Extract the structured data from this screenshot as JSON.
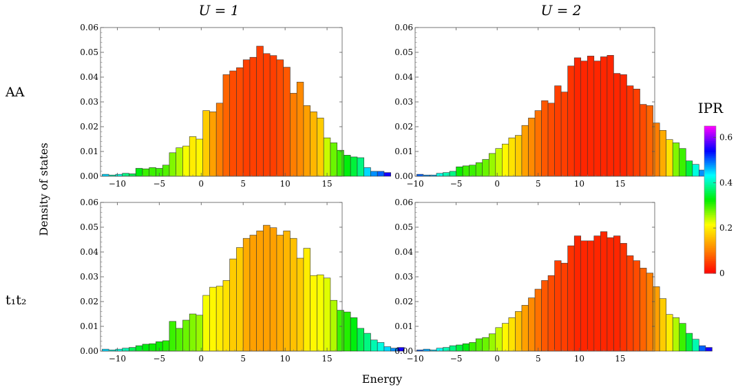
{
  "figure": {
    "col_titles": [
      "U = 1",
      "U = 2"
    ],
    "row_labels": [
      "AA",
      "t₁t₂"
    ],
    "xlabel": "Energy",
    "ylabel": "Density of states"
  },
  "colorbar": {
    "title": "IPR",
    "range": [
      0,
      0.65
    ],
    "ticks": [
      "0",
      "0.2",
      "0.4",
      "0.6"
    ],
    "tick_values": [
      0,
      0.2,
      0.4,
      0.6
    ],
    "colormap": [
      "#ff0000",
      "#ff8800",
      "#ffff00",
      "#00ee00",
      "#00ffff",
      "#0000ff",
      "#ff00ff"
    ]
  },
  "chart_data": [
    {
      "type": "bar",
      "panel": "AA, U = 1",
      "title": "U = 1",
      "row": "AA",
      "xlim": [
        -12,
        16.8
      ],
      "ylim": [
        0,
        0.06
      ],
      "xticks": [
        -10,
        -5,
        0,
        5,
        10,
        15
      ],
      "yticks": [
        0,
        0.01,
        0.02,
        0.03,
        0.04,
        0.05,
        0.06
      ],
      "bin_start": -11.8,
      "bin_width": 0.8,
      "values": [
        0.0008,
        0.0005,
        0.0008,
        0.0012,
        0.001,
        0.0032,
        0.003,
        0.0035,
        0.0032,
        0.0045,
        0.0095,
        0.0115,
        0.0122,
        0.016,
        0.015,
        0.0265,
        0.026,
        0.0295,
        0.041,
        0.0425,
        0.0438,
        0.047,
        0.048,
        0.0525,
        0.0495,
        0.0487,
        0.047,
        0.044,
        0.0335,
        0.038,
        0.0285,
        0.026,
        0.0235,
        0.0155,
        0.0135,
        0.0105,
        0.0085,
        0.0078,
        0.0075,
        0.0035,
        0.002,
        0.002,
        0.0015
      ],
      "ipr": [
        0.45,
        0.4,
        0.42,
        0.38,
        0.36,
        0.33,
        0.3,
        0.3,
        0.3,
        0.29,
        0.27,
        0.25,
        0.22,
        0.2,
        0.21,
        0.17,
        0.13,
        0.1,
        0.08,
        0.06,
        0.06,
        0.05,
        0.05,
        0.05,
        0.05,
        0.05,
        0.06,
        0.07,
        0.1,
        0.11,
        0.13,
        0.15,
        0.17,
        0.24,
        0.28,
        0.3,
        0.33,
        0.35,
        0.38,
        0.45,
        0.48,
        0.5,
        0.55
      ]
    },
    {
      "type": "bar",
      "panel": "AA, U = 2",
      "title": "U = 2",
      "row": "AA",
      "xlim": [
        -10,
        19.2
      ],
      "ylim": [
        0,
        0.06
      ],
      "xticks": [
        -10,
        -5,
        0,
        5,
        10,
        15
      ],
      "yticks": [
        0,
        0.01,
        0.02,
        0.03,
        0.04,
        0.05,
        0.06
      ],
      "bin_start": -9.8,
      "bin_width": 0.8,
      "values": [
        0.0008,
        0.0005,
        0.0005,
        0.0012,
        0.0015,
        0.002,
        0.0038,
        0.0042,
        0.0045,
        0.0055,
        0.0068,
        0.0092,
        0.0112,
        0.013,
        0.0155,
        0.0165,
        0.0205,
        0.0235,
        0.0265,
        0.0305,
        0.0295,
        0.0365,
        0.034,
        0.0445,
        0.0478,
        0.0465,
        0.0485,
        0.0465,
        0.0482,
        0.0488,
        0.0415,
        0.041,
        0.0365,
        0.0352,
        0.029,
        0.0285,
        0.0215,
        0.0185,
        0.0148,
        0.0135,
        0.0112,
        0.0062,
        0.0048,
        0.0025,
        0.0018
      ],
      "ipr": [
        0.5,
        0.48,
        0.47,
        0.42,
        0.4,
        0.38,
        0.32,
        0.3,
        0.3,
        0.29,
        0.28,
        0.26,
        0.24,
        0.21,
        0.19,
        0.17,
        0.13,
        0.11,
        0.09,
        0.07,
        0.06,
        0.05,
        0.05,
        0.04,
        0.03,
        0.03,
        0.03,
        0.03,
        0.03,
        0.03,
        0.03,
        0.03,
        0.04,
        0.05,
        0.06,
        0.08,
        0.1,
        0.14,
        0.19,
        0.27,
        0.3,
        0.35,
        0.42,
        0.48,
        0.52
      ]
    },
    {
      "type": "bar",
      "panel": "t₁t₂, U = 1",
      "title": "U = 1",
      "row": "t₁t₂",
      "xlim": [
        -12,
        16.8
      ],
      "ylim": [
        0,
        0.06
      ],
      "xticks": [
        -10,
        -5,
        0,
        5,
        10,
        15
      ],
      "yticks": [
        0,
        0.01,
        0.02,
        0.03,
        0.04,
        0.05,
        0.06
      ],
      "bin_start": -11.8,
      "bin_width": 0.8,
      "values": [
        0.0008,
        0.0005,
        0.0008,
        0.0012,
        0.0015,
        0.0022,
        0.0028,
        0.003,
        0.0038,
        0.0042,
        0.012,
        0.0092,
        0.0125,
        0.015,
        0.0145,
        0.0225,
        0.0258,
        0.0262,
        0.0285,
        0.0372,
        0.0418,
        0.0455,
        0.0468,
        0.0485,
        0.0508,
        0.0498,
        0.0468,
        0.0485,
        0.0455,
        0.0375,
        0.0415,
        0.0305,
        0.0308,
        0.0295,
        0.0205,
        0.0165,
        0.0158,
        0.0135,
        0.0092,
        0.0072,
        0.0045,
        0.0035,
        0.0018,
        0.0012,
        0.0015
      ],
      "ipr": [
        0.45,
        0.42,
        0.42,
        0.4,
        0.36,
        0.34,
        0.33,
        0.32,
        0.32,
        0.31,
        0.3,
        0.29,
        0.28,
        0.27,
        0.26,
        0.22,
        0.21,
        0.2,
        0.19,
        0.17,
        0.17,
        0.14,
        0.13,
        0.13,
        0.13,
        0.13,
        0.14,
        0.15,
        0.16,
        0.17,
        0.2,
        0.21,
        0.22,
        0.23,
        0.25,
        0.3,
        0.31,
        0.33,
        0.36,
        0.38,
        0.4,
        0.42,
        0.45,
        0.48,
        0.55
      ]
    },
    {
      "type": "bar",
      "panel": "t₁t₂, U = 2",
      "title": "U = 2",
      "row": "t₁t₂",
      "xlim": [
        -10,
        19.2
      ],
      "ylim": [
        0,
        0.06
      ],
      "xticks": [
        -10,
        -5,
        0,
        5,
        10,
        15
      ],
      "yticks": [
        0,
        0.01,
        0.02,
        0.03,
        0.04,
        0.05,
        0.06
      ],
      "bin_start": -9.8,
      "bin_width": 0.8,
      "values": [
        0.0005,
        0.0008,
        0.0005,
        0.0012,
        0.0015,
        0.0022,
        0.0025,
        0.003,
        0.0035,
        0.005,
        0.0055,
        0.007,
        0.0095,
        0.0112,
        0.0135,
        0.016,
        0.0185,
        0.0215,
        0.025,
        0.0285,
        0.0305,
        0.0365,
        0.0355,
        0.0425,
        0.0465,
        0.0445,
        0.0445,
        0.0465,
        0.0482,
        0.0458,
        0.0465,
        0.0435,
        0.0385,
        0.0365,
        0.0335,
        0.0315,
        0.026,
        0.0212,
        0.0148,
        0.0135,
        0.0112,
        0.0072,
        0.0048,
        0.0022,
        0.0015
      ],
      "ipr": [
        0.5,
        0.47,
        0.45,
        0.43,
        0.4,
        0.38,
        0.35,
        0.33,
        0.3,
        0.29,
        0.28,
        0.26,
        0.24,
        0.21,
        0.19,
        0.16,
        0.13,
        0.11,
        0.09,
        0.07,
        0.06,
        0.05,
        0.05,
        0.04,
        0.03,
        0.03,
        0.03,
        0.03,
        0.03,
        0.03,
        0.03,
        0.04,
        0.05,
        0.06,
        0.08,
        0.1,
        0.13,
        0.17,
        0.2,
        0.25,
        0.3,
        0.35,
        0.4,
        0.5,
        0.55
      ]
    }
  ]
}
